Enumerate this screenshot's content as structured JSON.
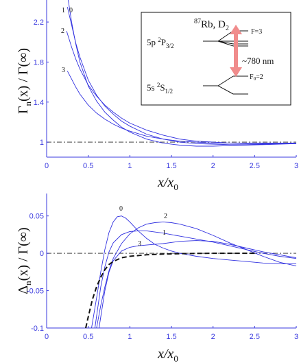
{
  "colors": {
    "axis": "#3a3adf",
    "curve": "#3030e0",
    "envelope": "#111111",
    "reference": "#666666",
    "arrow": "#f08c8c"
  },
  "chart_data": [
    {
      "type": "line",
      "xlabel": "x/x",
      "xlabel_sub": "0",
      "ylabel_parts": [
        "Γ",
        "n",
        "(x) / Γ(∞)"
      ],
      "xlim": [
        0,
        3
      ],
      "ylim": [
        0.85,
        2.42
      ],
      "xticks": [
        "0",
        "0.5",
        "1",
        "1.5",
        "2",
        "2.5",
        "3"
      ],
      "xtick_values": [
        0,
        0.5,
        1,
        1.5,
        2,
        2.5,
        3
      ],
      "yticks": [
        "1",
        "1.4",
        "1.8",
        "2.2"
      ],
      "ytick_values": [
        1,
        1.4,
        1.8,
        2.2
      ],
      "reference_line": 1,
      "series": [
        {
          "name": "0",
          "x": [
            0.26,
            0.3,
            0.35,
            0.4,
            0.5,
            0.6,
            0.7,
            0.8,
            0.9,
            1.0,
            1.2,
            1.4,
            1.6,
            1.8,
            2.0,
            2.2,
            2.4,
            2.6,
            2.8,
            3.0
          ],
          "y": [
            2.42,
            2.2,
            1.98,
            1.8,
            1.56,
            1.41,
            1.3,
            1.22,
            1.15,
            1.1,
            1.03,
            0.99,
            0.97,
            0.96,
            0.96,
            0.965,
            0.97,
            0.975,
            0.98,
            0.985
          ]
        },
        {
          "name": "1",
          "x": [
            0.25,
            0.3,
            0.35,
            0.4,
            0.5,
            0.6,
            0.7,
            0.8,
            0.9,
            1.0,
            1.2,
            1.4,
            1.6,
            1.8,
            2.0,
            2.2,
            2.4,
            2.6,
            2.8,
            3.0
          ],
          "y": [
            2.35,
            2.17,
            1.99,
            1.85,
            1.62,
            1.47,
            1.36,
            1.28,
            1.21,
            1.16,
            1.08,
            1.03,
            1.0,
            0.985,
            0.98,
            0.975,
            0.975,
            0.98,
            0.985,
            0.99
          ]
        },
        {
          "name": "2",
          "x": [
            0.24,
            0.3,
            0.35,
            0.4,
            0.5,
            0.6,
            0.7,
            0.8,
            0.9,
            1.0,
            1.2,
            1.4,
            1.6,
            1.8,
            2.0,
            2.2,
            2.4,
            2.6,
            2.8,
            3.0
          ],
          "y": [
            2.11,
            1.95,
            1.83,
            1.73,
            1.57,
            1.46,
            1.37,
            1.3,
            1.24,
            1.19,
            1.12,
            1.07,
            1.03,
            1.01,
            1.0,
            0.99,
            0.99,
            0.99,
            0.99,
            0.99
          ]
        },
        {
          "name": "3",
          "x": [
            0.25,
            0.3,
            0.35,
            0.4,
            0.5,
            0.6,
            0.7,
            0.8,
            0.9,
            1.0,
            1.2,
            1.4,
            1.6,
            1.8,
            2.0,
            2.2,
            2.4,
            2.6,
            2.8,
            3.0
          ],
          "y": [
            1.71,
            1.63,
            1.55,
            1.48,
            1.37,
            1.29,
            1.23,
            1.18,
            1.14,
            1.11,
            1.06,
            1.03,
            1.01,
            1.0,
            0.99,
            0.99,
            0.985,
            0.985,
            0.985,
            0.985
          ]
        }
      ],
      "inset": {
        "title_sup": "87",
        "title": "Rb, D",
        "title_sub": "2",
        "upper_level": {
          "prefix": "5p ",
          "sup": "2",
          "main": "P",
          "sub": "3/2"
        },
        "lower_level": {
          "prefix": "5s ",
          "sup": "2",
          "main": "S",
          "sub": "1/2"
        },
        "upper_label": "F=3",
        "lower_label_main": "F",
        "lower_label_sub": "0",
        "lower_label_rest": "=2",
        "wavelength": "~780 nm"
      }
    },
    {
      "type": "line",
      "xlabel": "x/x",
      "xlabel_sub": "0",
      "ylabel_parts": [
        "Δ",
        "n",
        "(x) / Γ(∞)"
      ],
      "xlim": [
        0,
        3
      ],
      "ylim": [
        -0.1,
        0.08
      ],
      "xticks": [
        "0",
        "0.5",
        "1",
        "1.5",
        "2",
        "2.5",
        "3"
      ],
      "xtick_values": [
        0,
        0.5,
        1,
        1.5,
        2,
        2.5,
        3
      ],
      "yticks": [
        "-0.1",
        "-0.05",
        "0",
        "0.05"
      ],
      "ytick_values": [
        -0.1,
        -0.05,
        0,
        0.05
      ],
      "reference_line": 0,
      "series": [
        {
          "name": "0",
          "x": [
            0.54,
            0.6,
            0.65,
            0.7,
            0.75,
            0.8,
            0.85,
            0.9,
            0.95,
            1.0,
            1.1,
            1.2,
            1.3,
            1.4,
            1.5,
            1.6,
            1.8,
            2.0,
            2.2,
            2.4,
            2.6,
            2.8,
            3.0
          ],
          "y": [
            -0.1,
            -0.06,
            -0.025,
            0.005,
            0.028,
            0.042,
            0.049,
            0.05,
            0.047,
            0.042,
            0.03,
            0.02,
            0.012,
            0.007,
            0.003,
            0.0,
            -0.004,
            -0.007,
            -0.009,
            -0.011,
            -0.013,
            -0.014,
            -0.014
          ]
        },
        {
          "name": "1",
          "x": [
            0.58,
            0.65,
            0.7,
            0.75,
            0.8,
            0.9,
            1.0,
            1.1,
            1.2,
            1.4,
            1.6,
            1.8,
            2.0,
            2.2,
            2.4,
            2.6,
            2.8,
            3.0
          ],
          "y": [
            -0.1,
            -0.045,
            -0.018,
            0.002,
            0.014,
            0.025,
            0.029,
            0.03,
            0.03,
            0.027,
            0.023,
            0.019,
            0.015,
            0.01,
            0.005,
            0.0,
            -0.004,
            -0.007
          ]
        },
        {
          "name": "2",
          "x": [
            0.6,
            0.65,
            0.7,
            0.75,
            0.8,
            0.9,
            1.0,
            1.1,
            1.2,
            1.3,
            1.4,
            1.5,
            1.6,
            1.8,
            2.0,
            2.2,
            2.4,
            2.6,
            2.8,
            3.0
          ],
          "y": [
            -0.1,
            -0.07,
            -0.045,
            -0.023,
            -0.007,
            0.013,
            0.026,
            0.034,
            0.039,
            0.041,
            0.042,
            0.041,
            0.039,
            0.033,
            0.024,
            0.014,
            0.005,
            -0.004,
            -0.012,
            -0.017
          ]
        },
        {
          "name": "3",
          "x": [
            0.63,
            0.7,
            0.75,
            0.8,
            0.9,
            1.0,
            1.1,
            1.2,
            1.4,
            1.6,
            1.8,
            2.0,
            2.2,
            2.4,
            2.6,
            2.8,
            3.0
          ],
          "y": [
            -0.1,
            -0.05,
            -0.025,
            -0.01,
            0.003,
            0.008,
            0.01,
            0.011,
            0.013,
            0.016,
            0.017,
            0.016,
            0.012,
            0.007,
            0.002,
            -0.002,
            -0.006
          ]
        },
        {
          "name": "envelope",
          "x": [
            0.47,
            0.5,
            0.55,
            0.6,
            0.65,
            0.7,
            0.75,
            0.8,
            0.9,
            1.0,
            1.2,
            1.4,
            1.6,
            1.8,
            2.0,
            2.2,
            2.5
          ],
          "y": [
            -0.1,
            -0.085,
            -0.062,
            -0.045,
            -0.032,
            -0.022,
            -0.015,
            -0.011,
            -0.006,
            -0.004,
            -0.002,
            -0.001,
            -0.0005,
            -0.0002,
            0.0,
            0.0,
            0.0
          ]
        }
      ],
      "labels": [
        "0",
        "1",
        "2",
        "3"
      ]
    }
  ]
}
